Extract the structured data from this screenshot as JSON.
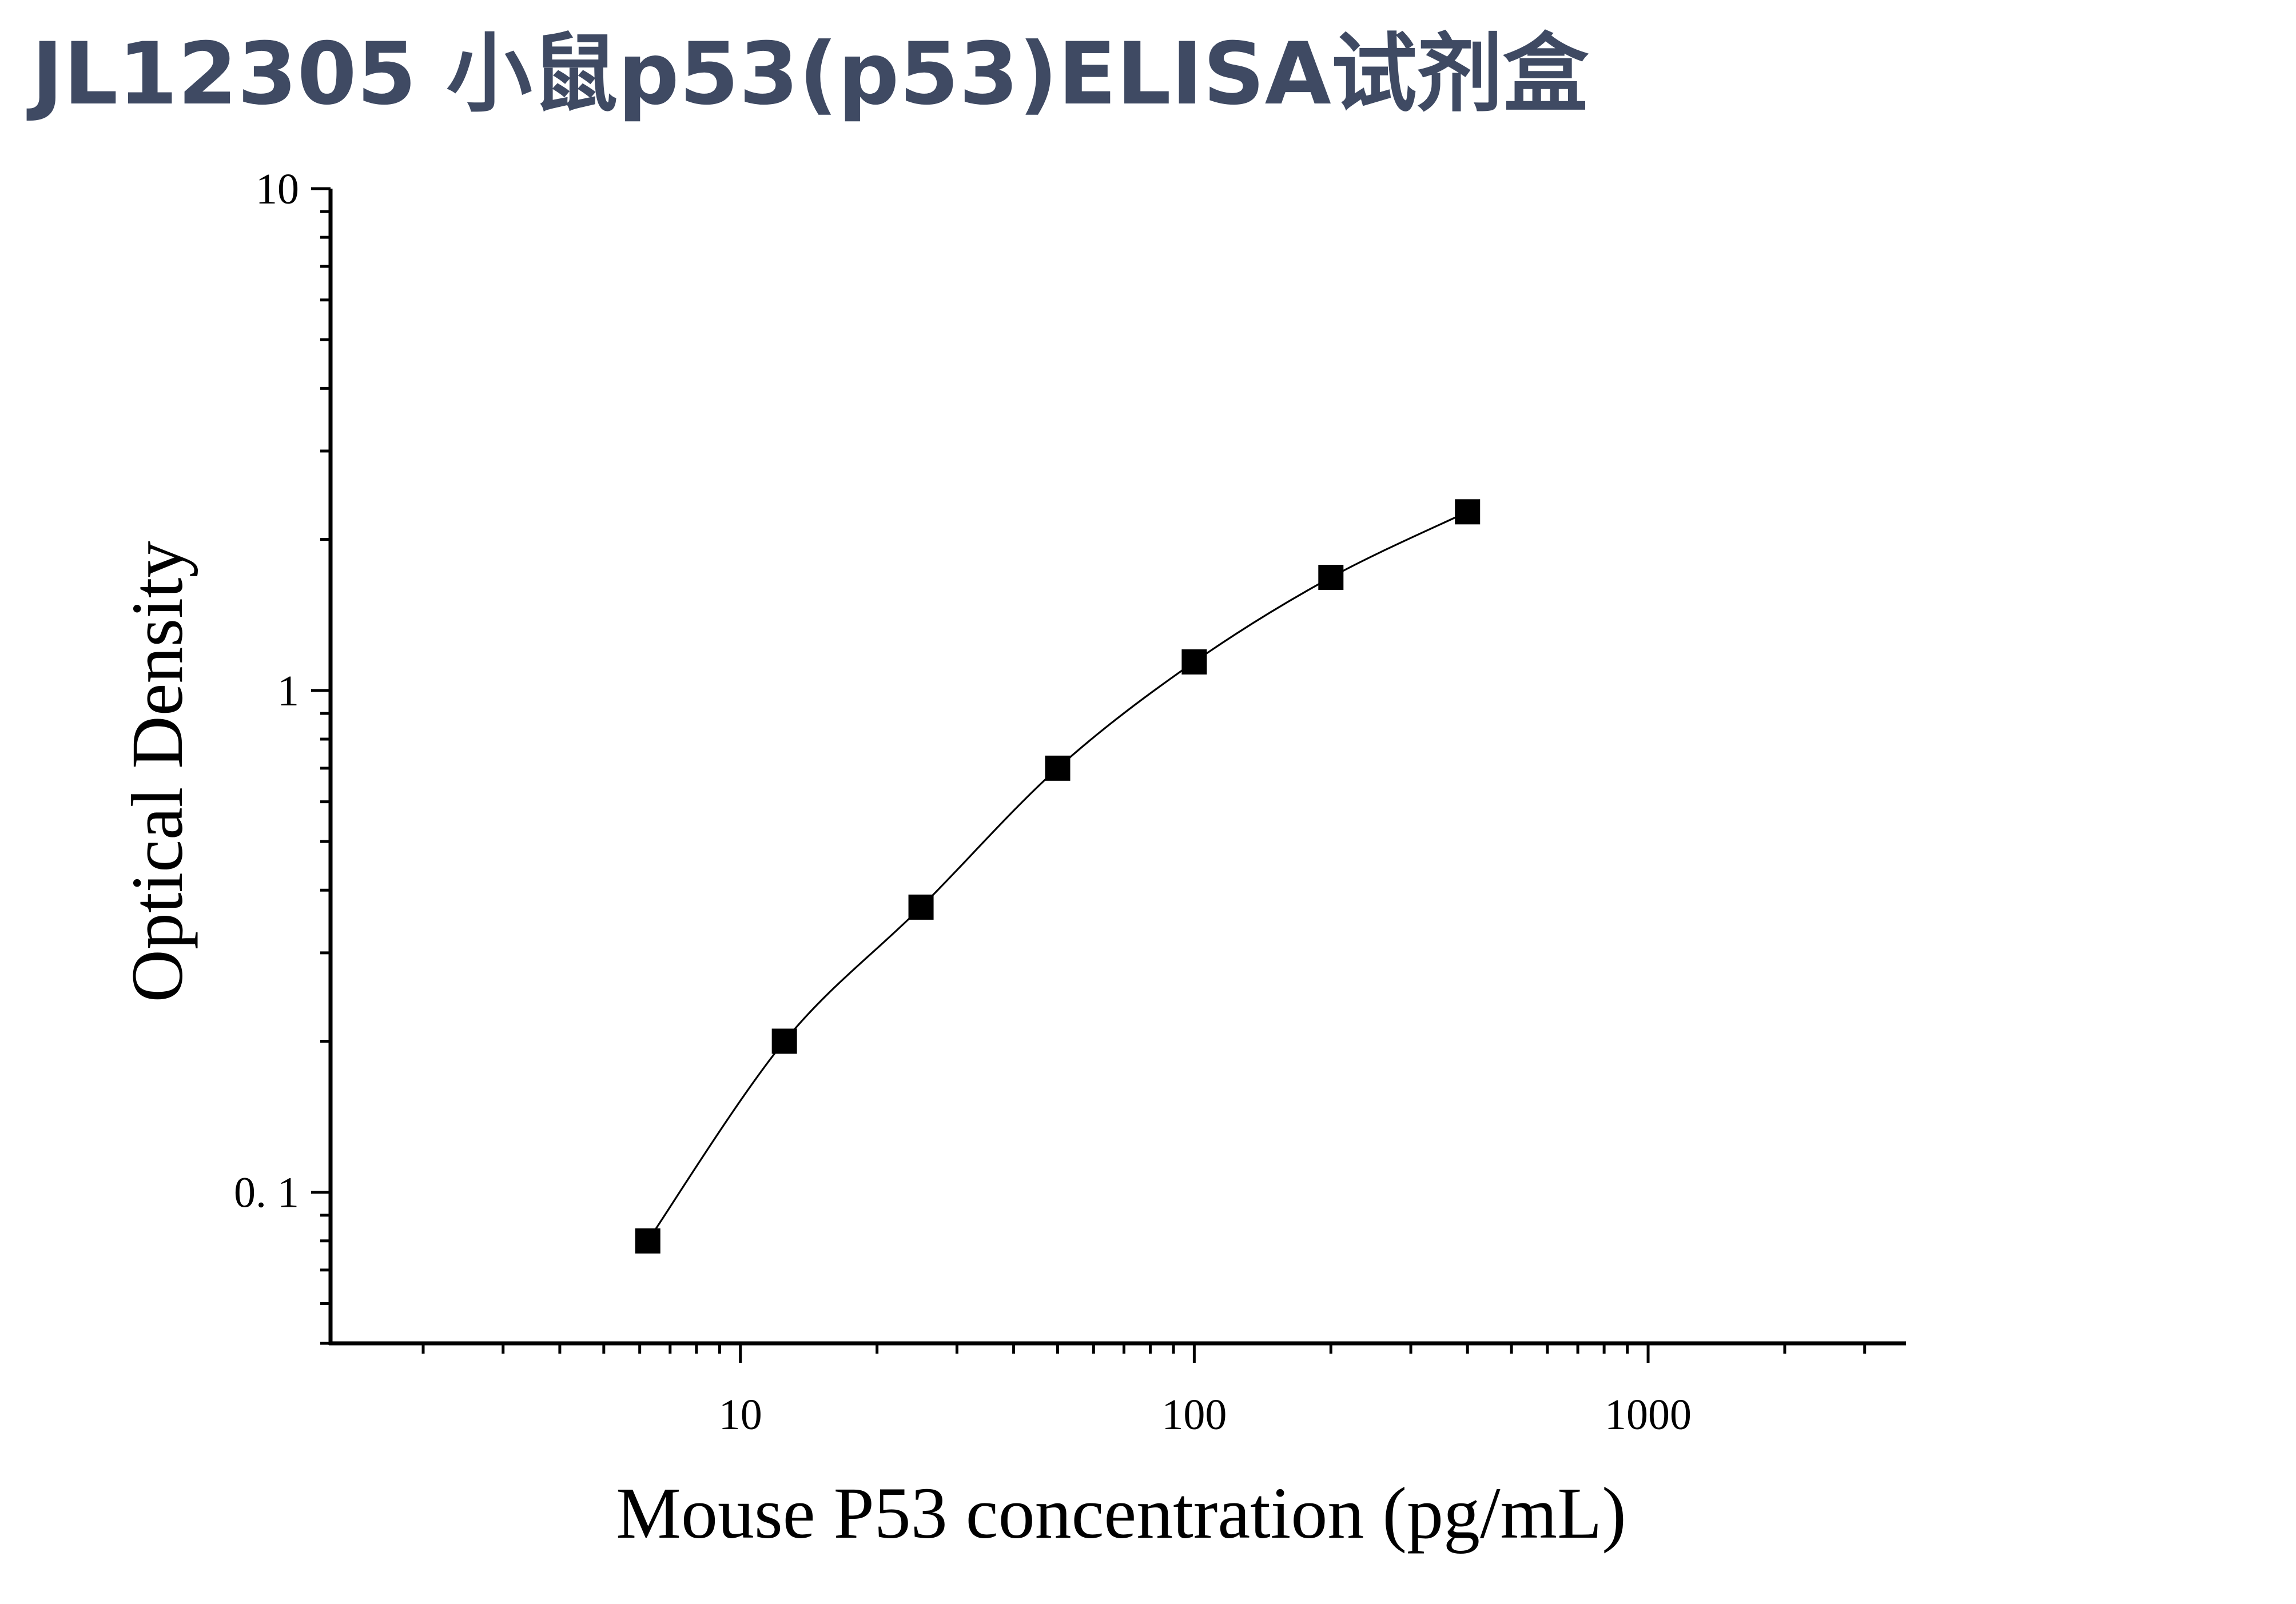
{
  "page": {
    "title": "JL12305 小鼠p53(p53)ELISA试剂盒"
  },
  "chart_data": {
    "type": "scatter",
    "title": "",
    "xlabel": "Mouse P53 concentration (pg/mL)",
    "ylabel": "Optical Density",
    "x_scale": "log",
    "y_scale": "log",
    "xlim": [
      1.25,
      3700
    ],
    "ylim": [
      0.05,
      10
    ],
    "x_ticks": [
      {
        "value": 10,
        "label": "10"
      },
      {
        "value": 100,
        "label": "100"
      },
      {
        "value": 1000,
        "label": "1000"
      }
    ],
    "y_ticks": [
      {
        "value": 0.1,
        "label": "0. 1"
      },
      {
        "value": 1,
        "label": "1"
      },
      {
        "value": 10,
        "label": "10"
      }
    ],
    "grid": false,
    "legend": "none",
    "series": [
      {
        "marker": "square",
        "fit_line": true,
        "color": "#000000",
        "x": [
          6.25,
          12.5,
          25,
          50,
          100,
          200,
          400
        ],
        "y": [
          0.08,
          0.2,
          0.37,
          0.7,
          1.14,
          1.68,
          2.27
        ]
      }
    ]
  }
}
